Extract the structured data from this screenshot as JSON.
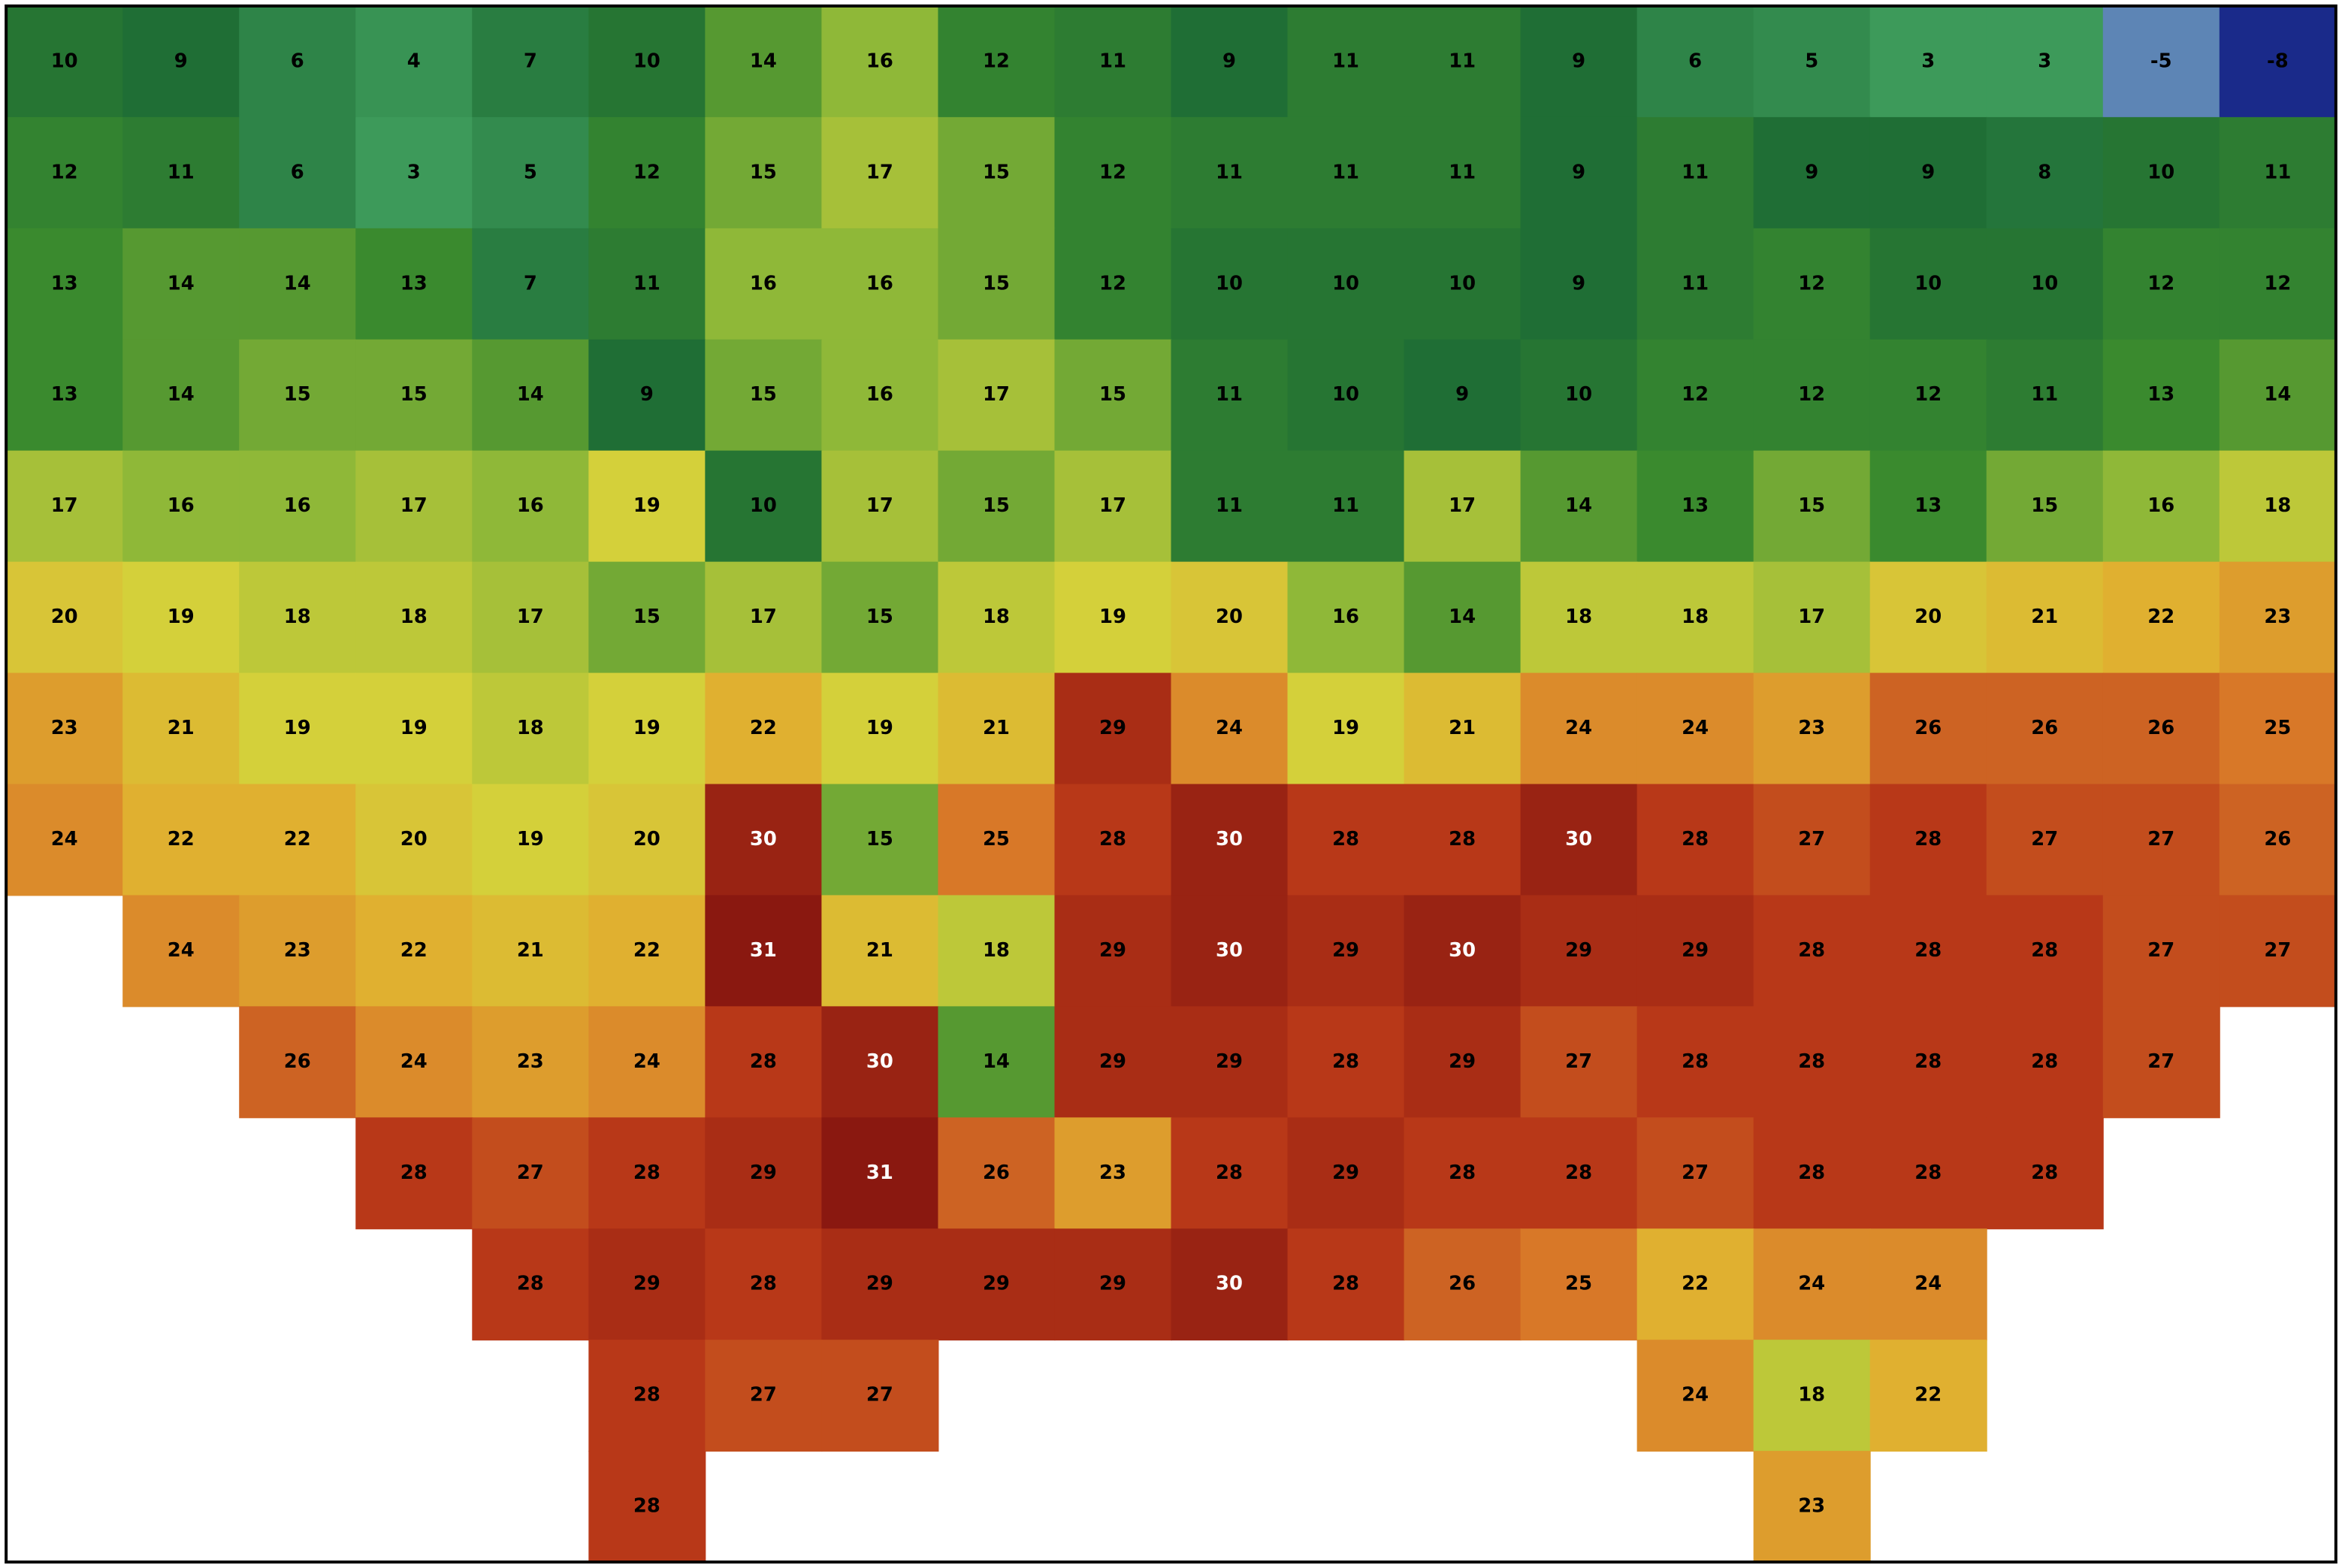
{
  "map": {
    "grid": [
      [
        10,
        9,
        6,
        4,
        7,
        10,
        14,
        16,
        12,
        11,
        9,
        11,
        11,
        9,
        6,
        5,
        3,
        3,
        -5,
        -8
      ],
      [
        12,
        11,
        6,
        3,
        5,
        12,
        15,
        17,
        15,
        12,
        11,
        11,
        11,
        9,
        11,
        9,
        9,
        8,
        10,
        11
      ],
      [
        13,
        14,
        14,
        13,
        7,
        11,
        16,
        16,
        15,
        12,
        10,
        10,
        10,
        9,
        11,
        12,
        10,
        10,
        12,
        12
      ],
      [
        13,
        14,
        15,
        15,
        14,
        9,
        15,
        16,
        17,
        15,
        11,
        10,
        9,
        10,
        12,
        12,
        12,
        11,
        13,
        14
      ],
      [
        17,
        16,
        16,
        17,
        16,
        19,
        10,
        17,
        15,
        17,
        11,
        11,
        17,
        14,
        13,
        15,
        13,
        15,
        16,
        18
      ],
      [
        20,
        19,
        18,
        18,
        17,
        15,
        17,
        15,
        18,
        19,
        20,
        16,
        14,
        18,
        18,
        17,
        20,
        21,
        22,
        23
      ],
      [
        23,
        21,
        19,
        19,
        18,
        19,
        22,
        19,
        21,
        29,
        24,
        19,
        21,
        24,
        24,
        23,
        26,
        26,
        26,
        25
      ],
      [
        24,
        22,
        22,
        20,
        19,
        20,
        30,
        15,
        25,
        28,
        30,
        28,
        28,
        30,
        28,
        27,
        28,
        27,
        27,
        26
      ],
      [
        null,
        24,
        23,
        22,
        21,
        22,
        31,
        21,
        18,
        29,
        30,
        29,
        30,
        29,
        29,
        28,
        28,
        28,
        27,
        27
      ],
      [
        null,
        null,
        26,
        24,
        23,
        24,
        28,
        30,
        14,
        29,
        29,
        28,
        29,
        27,
        28,
        28,
        28,
        28,
        27,
        null
      ],
      [
        null,
        null,
        null,
        28,
        27,
        28,
        29,
        31,
        26,
        23,
        28,
        29,
        28,
        28,
        27,
        28,
        28,
        28,
        null,
        null
      ],
      [
        null,
        null,
        null,
        null,
        28,
        29,
        28,
        29,
        29,
        29,
        30,
        28,
        26,
        25,
        22,
        24,
        24,
        null,
        null,
        null
      ],
      [
        null,
        null,
        null,
        null,
        null,
        28,
        27,
        27,
        null,
        null,
        null,
        null,
        null,
        null,
        24,
        18,
        22,
        null,
        null,
        null
      ],
      [
        null,
        null,
        null,
        null,
        null,
        28,
        null,
        null,
        null,
        null,
        null,
        null,
        null,
        null,
        null,
        23,
        null,
        null,
        null,
        null
      ]
    ]
  }
}
